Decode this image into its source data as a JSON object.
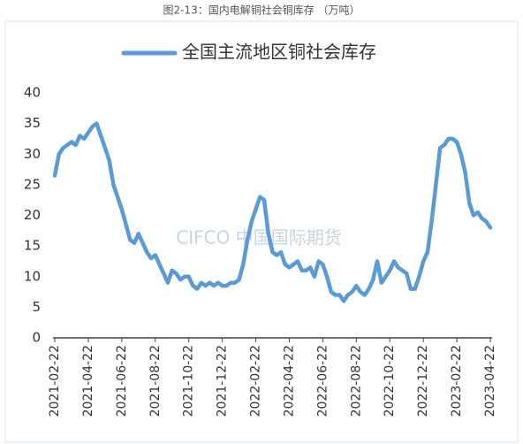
{
  "chart_data": {
    "type": "line",
    "title": "图2-13：国内电解铜社会铜库存 （万吨）",
    "watermark": "CIFCO 中国国际期货",
    "categories": [
      "2021-02-22",
      null,
      null,
      null,
      null,
      null,
      null,
      null,
      "2021-04-22",
      null,
      null,
      null,
      null,
      null,
      null,
      null,
      "2021-06-22",
      null,
      null,
      null,
      null,
      null,
      null,
      null,
      "2021-08-22",
      null,
      null,
      null,
      null,
      null,
      null,
      null,
      "2021-10-22",
      null,
      null,
      null,
      null,
      null,
      null,
      null,
      "2021-12-22",
      null,
      null,
      null,
      null,
      null,
      null,
      null,
      "2022-02-22",
      null,
      null,
      null,
      null,
      null,
      null,
      null,
      "2022-04-22",
      null,
      null,
      null,
      null,
      null,
      null,
      null,
      "2022-06-22",
      null,
      null,
      null,
      null,
      null,
      null,
      null,
      "2022-08-22",
      null,
      null,
      null,
      null,
      null,
      null,
      null,
      "2022-10-22",
      null,
      null,
      null,
      null,
      null,
      null,
      null,
      "2022-12-22",
      null,
      null,
      null,
      null,
      null,
      null,
      null,
      "2023-02-22",
      null,
      null,
      null,
      null,
      null,
      null,
      null,
      "2023-04-22"
    ],
    "series": [
      {
        "name": "全国主流地区铜社会库存",
        "color": "#5b9bd5",
        "values": [
          26.5,
          30,
          31,
          31.5,
          32,
          31.5,
          33,
          32.5,
          33.5,
          34.5,
          35,
          33,
          31,
          29,
          25,
          23,
          21,
          18.5,
          16,
          15.5,
          17,
          15.5,
          14,
          13,
          13.5,
          12,
          10.5,
          9,
          11,
          10.5,
          9.5,
          10,
          10,
          8.5,
          8,
          9,
          8.5,
          9,
          8.5,
          9,
          8.5,
          8.5,
          9,
          9,
          9.5,
          12,
          16,
          19,
          21,
          23,
          22.5,
          17,
          14,
          13.5,
          14,
          12,
          11.5,
          12,
          12.5,
          11,
          11,
          11.5,
          10,
          12.5,
          12,
          10,
          7.5,
          7,
          7,
          6,
          7,
          7.5,
          8.5,
          7.5,
          7,
          8,
          9.5,
          12.5,
          9,
          10,
          11,
          12.5,
          11.5,
          11,
          10.5,
          8,
          8,
          10,
          12.5,
          14,
          19,
          25,
          31,
          31.5,
          32.5,
          32.5,
          32,
          30,
          27,
          22,
          20,
          20.5,
          19.5,
          19,
          18
        ]
      }
    ],
    "ylim": [
      0,
      40
    ],
    "yticks": [
      0,
      5,
      10,
      15,
      20,
      25,
      30,
      35,
      40
    ],
    "grid": false
  }
}
